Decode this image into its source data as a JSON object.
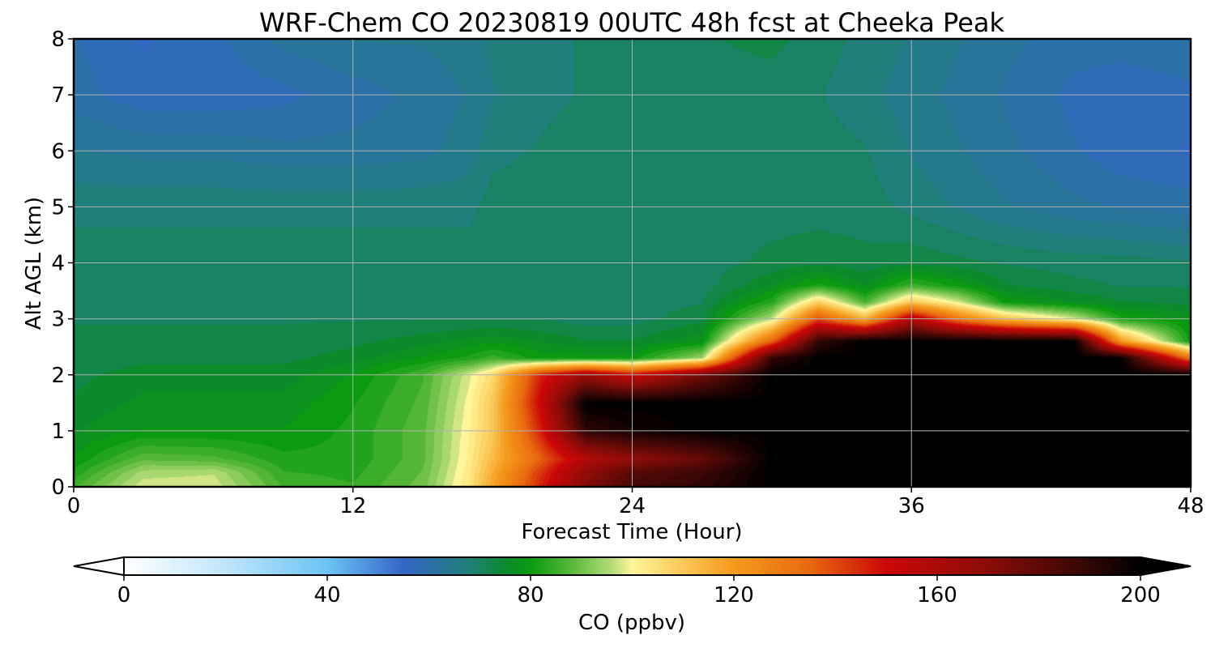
{
  "chart_data": {
    "type": "heatmap",
    "title": "WRF-Chem CO  20230819 00UTC 48h fcst at Cheeka Peak",
    "xlabel": "Forecast Time (Hour)",
    "ylabel": "Alt AGL (km)",
    "xlim": [
      0,
      48
    ],
    "ylim": [
      0,
      8
    ],
    "x_ticks": [
      "0",
      "12",
      "24",
      "36",
      "48"
    ],
    "y_ticks": [
      "0",
      "1",
      "2",
      "3",
      "4",
      "5",
      "6",
      "7",
      "8"
    ],
    "grid": true,
    "colorbar": {
      "label": "CO  (ppbv)",
      "range": [
        0,
        200
      ],
      "extend": "both",
      "ticks": [
        "0",
        "40",
        "80",
        "120",
        "160",
        "200"
      ],
      "stops": [
        {
          "value": 0,
          "color": "#ffffff"
        },
        {
          "value": 20,
          "color": "#bfe6fa"
        },
        {
          "value": 40,
          "color": "#6cc3f5"
        },
        {
          "value": 55,
          "color": "#3466c6"
        },
        {
          "value": 68,
          "color": "#1f7f78"
        },
        {
          "value": 75,
          "color": "#0b8a2c"
        },
        {
          "value": 80,
          "color": "#0a9a10"
        },
        {
          "value": 88,
          "color": "#58b83a"
        },
        {
          "value": 96,
          "color": "#b5dc7a"
        },
        {
          "value": 100,
          "color": "#fff59a"
        },
        {
          "value": 108,
          "color": "#fbd163"
        },
        {
          "value": 120,
          "color": "#f59a1c"
        },
        {
          "value": 135,
          "color": "#e8680e"
        },
        {
          "value": 150,
          "color": "#cc0707"
        },
        {
          "value": 170,
          "color": "#8a0c08"
        },
        {
          "value": 188,
          "color": "#3a0705"
        },
        {
          "value": 200,
          "color": "#000000"
        }
      ]
    },
    "co_field_ppbv": {
      "x_hours": [
        0,
        3,
        6,
        9,
        12,
        15,
        17,
        18,
        20,
        22,
        24,
        27,
        30,
        32,
        34,
        36,
        38,
        40,
        43,
        45,
        48
      ],
      "y_km": [
        0,
        0.25,
        0.5,
        1,
        1.5,
        2,
        2.3,
        2.6,
        3,
        3.3,
        3.6,
        4,
        5,
        6,
        7,
        8
      ],
      "values": [
        [
          86,
          98,
          98,
          86,
          84,
          90,
          104,
          118,
          145,
          172,
          185,
          190,
          200,
          200,
          200,
          200,
          200,
          200,
          200,
          200,
          200
        ],
        [
          82,
          95,
          96,
          84,
          83,
          89,
          103,
          116,
          142,
          168,
          182,
          188,
          200,
          200,
          200,
          200,
          200,
          200,
          200,
          200,
          200
        ],
        [
          79,
          88,
          87,
          82,
          82,
          88,
          102,
          113,
          135,
          158,
          168,
          178,
          200,
          200,
          200,
          200,
          200,
          200,
          200,
          200,
          200
        ],
        [
          76,
          79,
          79,
          79,
          82,
          88,
          101,
          110,
          145,
          190,
          196,
          200,
          200,
          200,
          200,
          200,
          200,
          200,
          200,
          200,
          200
        ],
        [
          74,
          77,
          77,
          77,
          81,
          87,
          100,
          110,
          150,
          200,
          200,
          200,
          200,
          200,
          200,
          200,
          200,
          200,
          200,
          200,
          200
        ],
        [
          73,
          75,
          75,
          75,
          79,
          86,
          98,
          106,
          145,
          165,
          150,
          175,
          200,
          200,
          200,
          200,
          200,
          200,
          200,
          200,
          200
        ],
        [
          72,
          73,
          73,
          73,
          75,
          79,
          82,
          85,
          80,
          80,
          80,
          94,
          190,
          200,
          200,
          200,
          200,
          200,
          200,
          200,
          130
        ],
        [
          72,
          72,
          72,
          72,
          73,
          75,
          77,
          78,
          76,
          74,
          74,
          78,
          135,
          190,
          200,
          200,
          200,
          200,
          200,
          120,
          80
        ],
        [
          71,
          71,
          71,
          71,
          71,
          71,
          71,
          71,
          71,
          70,
          70,
          73,
          96,
          140,
          115,
          160,
          130,
          112,
          98,
          82,
          78
        ],
        [
          70,
          70,
          70,
          70,
          70,
          70,
          70,
          70,
          70,
          70,
          70,
          71,
          83,
          108,
          86,
          110,
          98,
          80,
          76,
          74,
          73
        ],
        [
          70,
          70,
          70,
          70,
          70,
          70,
          70,
          70,
          70,
          70,
          70,
          70,
          76,
          82,
          76,
          85,
          80,
          74,
          72,
          71,
          71
        ],
        [
          70,
          70,
          70,
          70,
          70,
          70,
          70,
          70,
          70,
          70,
          70,
          70,
          72,
          73,
          72,
          73,
          72,
          71,
          70,
          70,
          69
        ],
        [
          68,
          68,
          68,
          68,
          68,
          68,
          68,
          70,
          70,
          70,
          70,
          70,
          70,
          70,
          70,
          68,
          66,
          64,
          62,
          61,
          60
        ],
        [
          64,
          63,
          63,
          62,
          62,
          63,
          65,
          68,
          69,
          70,
          70,
          70,
          70,
          70,
          69,
          66,
          64,
          62,
          59,
          57,
          56
        ],
        [
          60,
          57,
          57,
          58,
          60,
          62,
          64,
          66,
          68,
          69,
          70,
          70,
          70,
          69,
          67,
          65,
          63,
          61,
          58,
          57,
          58
        ],
        [
          59,
          56,
          58,
          62,
          64,
          64,
          65,
          67,
          68,
          69,
          70,
          71,
          72,
          70,
          68,
          66,
          64,
          62,
          60,
          60,
          61
        ]
      ]
    }
  }
}
